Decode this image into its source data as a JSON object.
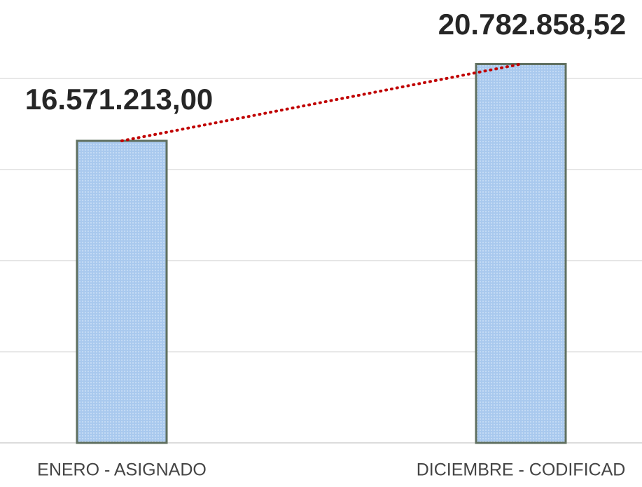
{
  "chart_data": {
    "type": "bar",
    "categories": [
      "ENERO - ASIGNADO",
      "DICIEMBRE - CODIFICAD"
    ],
    "values": [
      16571213.0,
      20782858.52
    ],
    "value_labels": [
      "16.571.213,00",
      "20.782.858,52"
    ],
    "color": "#a9c9ee",
    "ylim": [
      0,
      24300000
    ],
    "yticks": [
      0,
      5000000,
      10000000,
      15000000,
      20000000
    ],
    "grid": true,
    "trendline_color": "#c00000"
  }
}
